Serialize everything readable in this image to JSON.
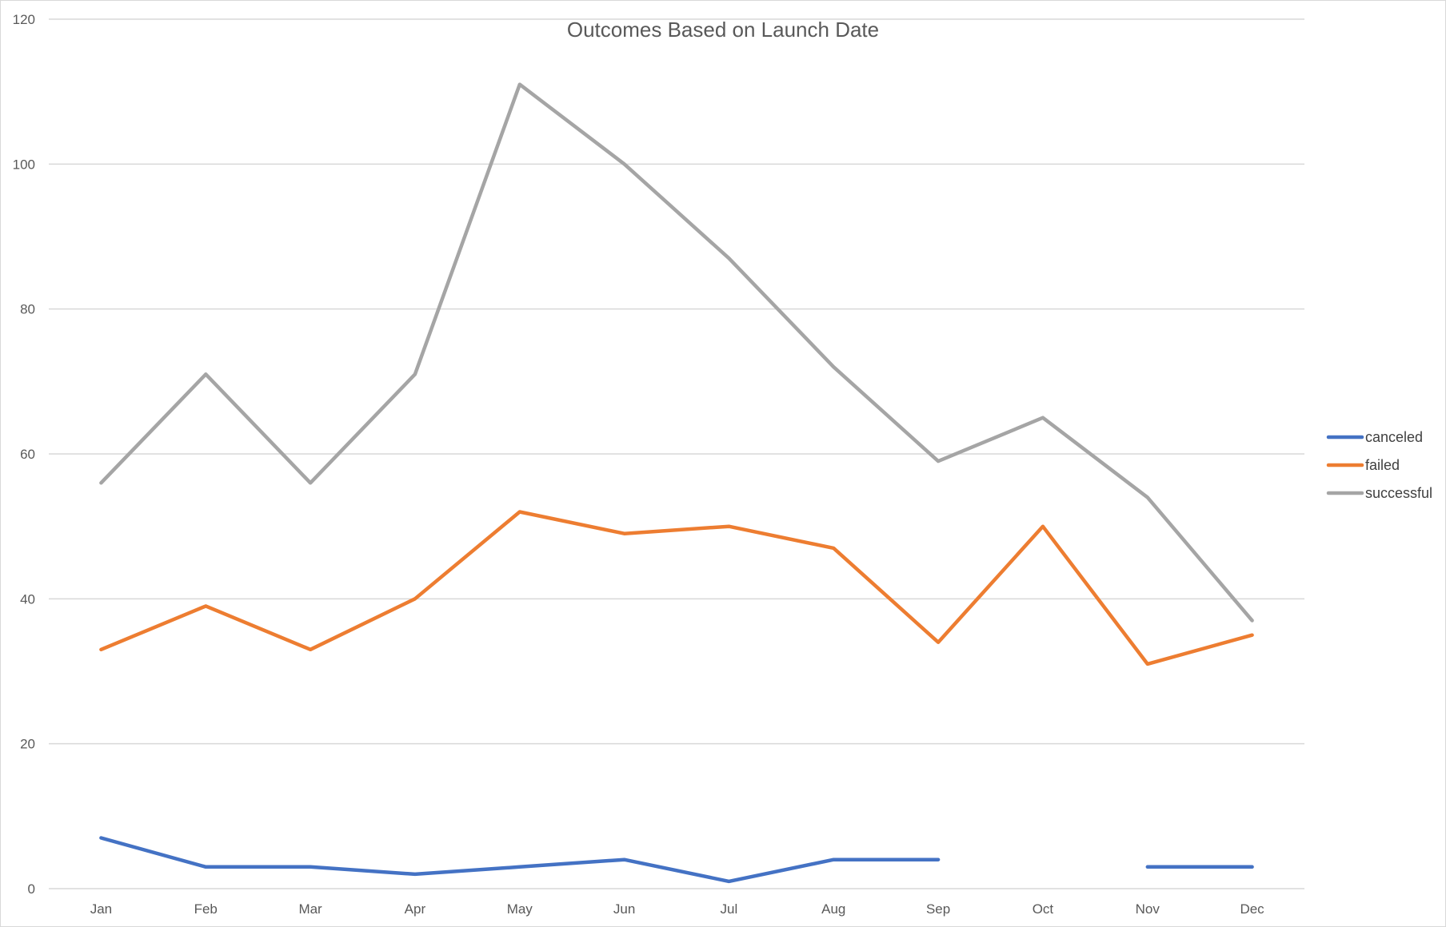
{
  "chart_data": {
    "type": "line",
    "title": "Outcomes Based on Launch Date",
    "xlabel": "",
    "ylabel": "",
    "categories": [
      "Jan",
      "Feb",
      "Mar",
      "Apr",
      "May",
      "Jun",
      "Jul",
      "Aug",
      "Sep",
      "Oct",
      "Nov",
      "Dec"
    ],
    "ylim": [
      0,
      120
    ],
    "yticks": [
      0,
      20,
      40,
      60,
      80,
      100,
      120
    ],
    "grid": true,
    "legend_position": "right",
    "series": [
      {
        "name": "canceled",
        "color": "#4472C4",
        "values": [
          7,
          3,
          3,
          2,
          3,
          4,
          1,
          4,
          4,
          null,
          3,
          3
        ]
      },
      {
        "name": "failed",
        "color": "#ED7D31",
        "values": [
          33,
          39,
          33,
          40,
          52,
          49,
          50,
          47,
          34,
          50,
          31,
          35
        ]
      },
      {
        "name": "successful",
        "color": "#A5A5A5",
        "values": [
          56,
          71,
          56,
          71,
          111,
          100,
          87,
          72,
          59,
          65,
          54,
          37
        ]
      }
    ]
  }
}
